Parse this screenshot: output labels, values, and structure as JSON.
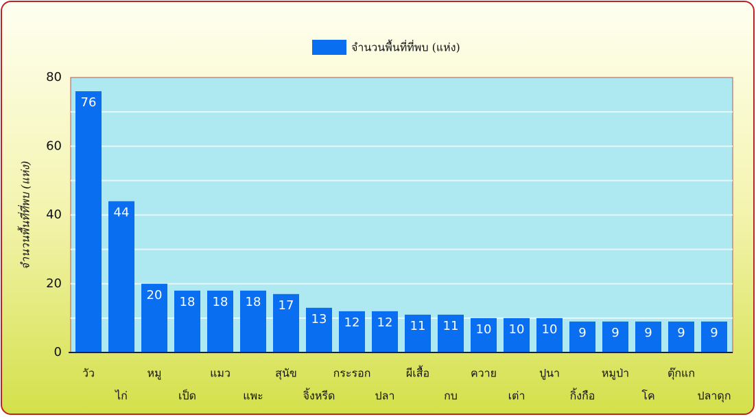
{
  "chart_data": {
    "type": "bar",
    "legend": "จำนวนพื้นที่ที่พบ (แห่ง)",
    "y_label": "จำนวนพื้นที่ที่พบ (แห่ง)",
    "categories": [
      "วัว",
      "ไก่",
      "หมู",
      "เป็ด",
      "แมว",
      "แพะ",
      "สุนัข",
      "จิ้งหรีด",
      "กระรอก",
      "ปลา",
      "ผีเสื้อ",
      "กบ",
      "ควาย",
      "เต่า",
      "ปูนา",
      "กิ้งกือ",
      "หมูป่า",
      "โค",
      "ตุ๊กแก",
      "ปลาดุก"
    ],
    "values": [
      76,
      44,
      20,
      18,
      18,
      18,
      17,
      13,
      12,
      12,
      11,
      11,
      10,
      10,
      10,
      9,
      9,
      9,
      9,
      9
    ],
    "color": "#0a6ef0",
    "ylim": [
      0,
      80
    ],
    "yticks": [
      0,
      20,
      40,
      60,
      80
    ],
    "minor_yticks": [
      10,
      30,
      50,
      70
    ],
    "grid": true
  }
}
